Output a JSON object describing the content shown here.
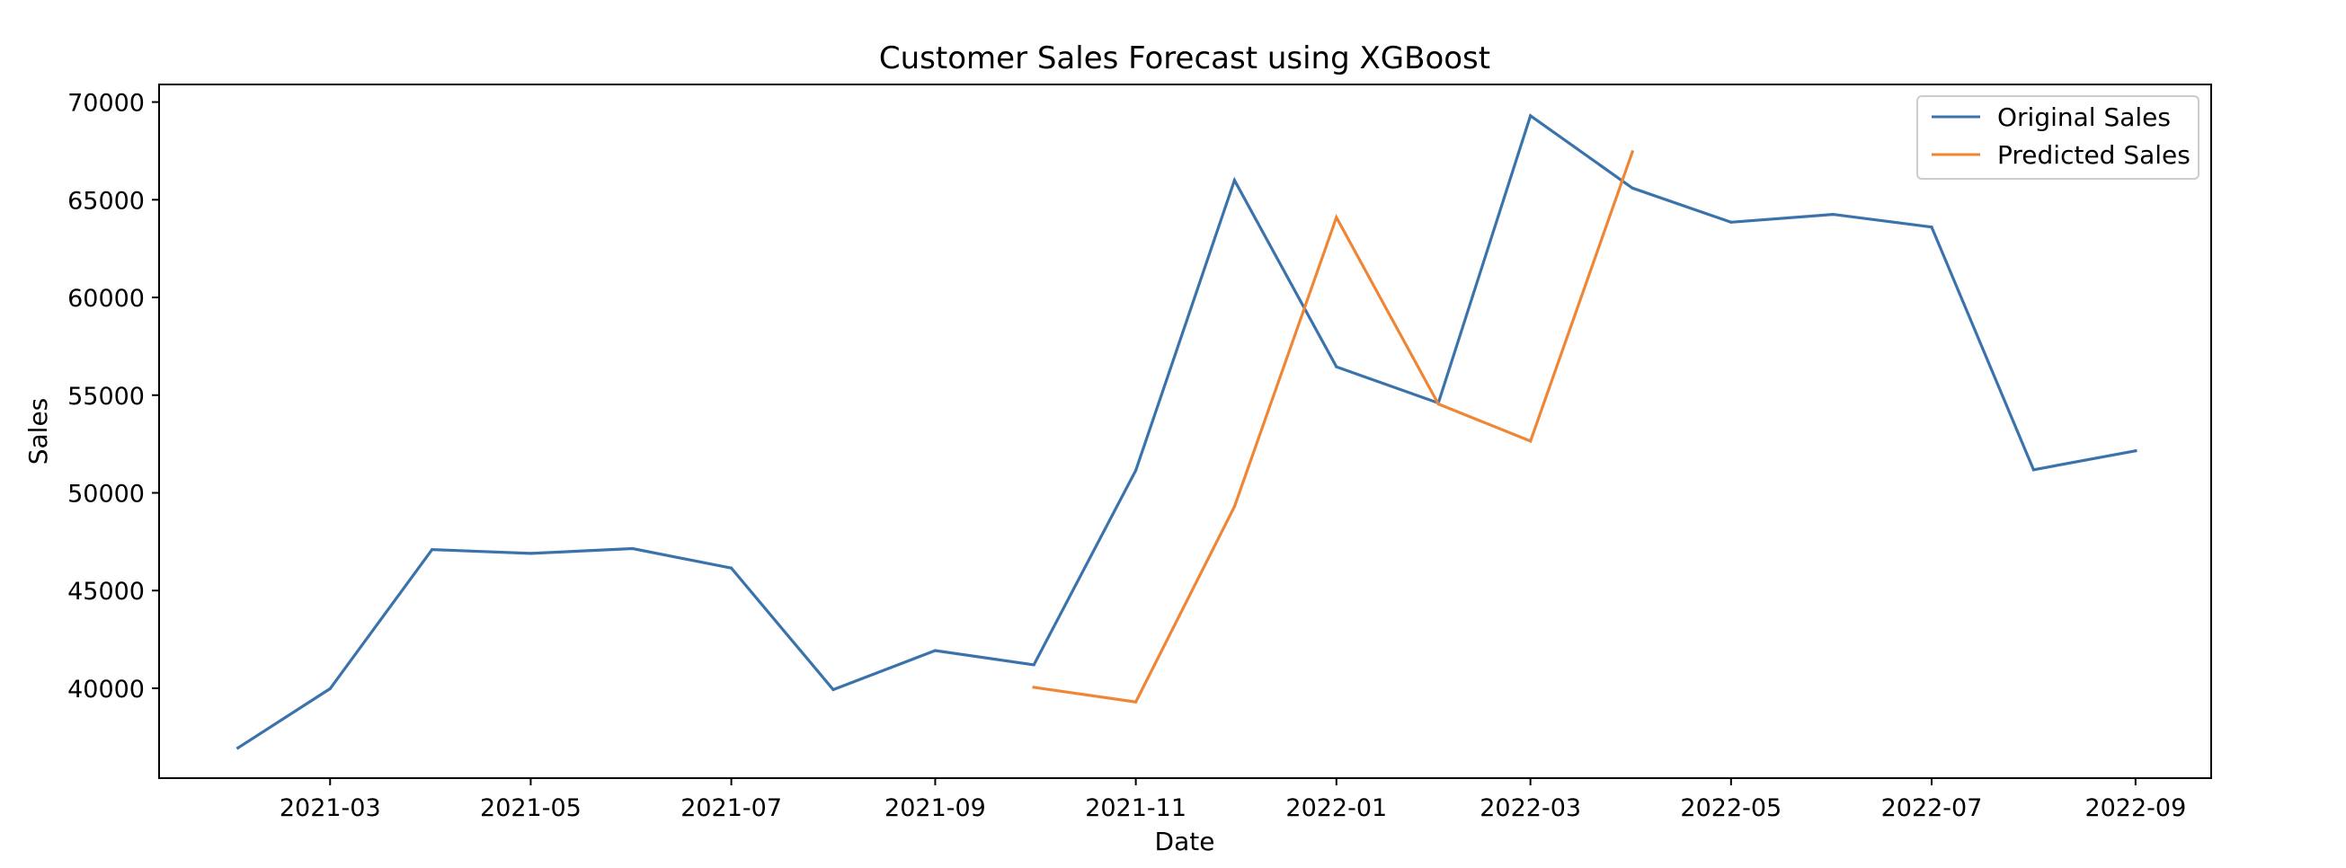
{
  "chart_data": {
    "type": "line",
    "title": "Customer Sales Forecast using XGBoost",
    "xlabel": "Date",
    "ylabel": "Sales",
    "xlim": [
      "2021-01-08",
      "2022-09-24"
    ],
    "ylim": [
      35400,
      70900
    ],
    "x_ticks": [
      "2021-03",
      "2021-05",
      "2021-07",
      "2021-09",
      "2021-11",
      "2022-01",
      "2022-03",
      "2022-05",
      "2022-07",
      "2022-09"
    ],
    "y_ticks": [
      40000,
      45000,
      50000,
      55000,
      60000,
      65000,
      70000
    ],
    "grid": false,
    "legend_position": "top-right",
    "series": [
      {
        "name": "Original Sales",
        "color": "#3a73ab",
        "points": [
          [
            "2021-02-01",
            36950
          ],
          [
            "2021-03-01",
            39980
          ],
          [
            "2021-04-01",
            47100
          ],
          [
            "2021-05-01",
            46900
          ],
          [
            "2021-06-01",
            47150
          ],
          [
            "2021-07-01",
            46150
          ],
          [
            "2021-08-01",
            39930
          ],
          [
            "2021-09-01",
            41930
          ],
          [
            "2021-10-01",
            41200
          ],
          [
            "2021-11-01",
            51150
          ],
          [
            "2021-12-01",
            66000
          ],
          [
            "2022-01-01",
            56450
          ],
          [
            "2022-02-01",
            54600
          ],
          [
            "2022-03-01",
            69300
          ],
          [
            "2022-04-01",
            65600
          ],
          [
            "2022-05-01",
            63850
          ],
          [
            "2022-06-01",
            64250
          ],
          [
            "2022-07-01",
            63600
          ],
          [
            "2022-08-01",
            51180
          ],
          [
            "2022-09-01",
            52150
          ]
        ]
      },
      {
        "name": "Predicted Sales",
        "color": "#ef8636",
        "points": [
          [
            "2021-10-01",
            40050
          ],
          [
            "2021-11-01",
            39300
          ],
          [
            "2021-12-01",
            49300
          ],
          [
            "2022-01-01",
            64100
          ],
          [
            "2022-02-01",
            54550
          ],
          [
            "2022-03-01",
            52650
          ],
          [
            "2022-04-01",
            67450
          ]
        ]
      }
    ]
  }
}
